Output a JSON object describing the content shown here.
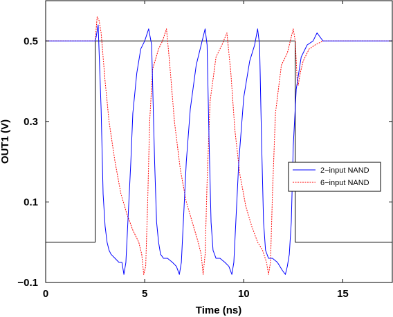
{
  "chart_data": {
    "type": "line",
    "title": "",
    "xlabel": "Time (ns)",
    "ylabel": "OUT1 (V)",
    "xlim": [
      0,
      17.5
    ],
    "ylim": [
      -0.1,
      0.6
    ],
    "x_ticks": [
      "0",
      "5",
      "10",
      "15"
    ],
    "x_tick_values": [
      0,
      5,
      10,
      15
    ],
    "y_ticks": [
      "−0.1",
      "0.1",
      "0.3",
      "0.5"
    ],
    "y_tick_values": [
      -0.1,
      0.1,
      0.3,
      0.5
    ],
    "grid": false,
    "legend_position": "right",
    "series": [
      {
        "name": "2−input NAND",
        "color": "#0000ff",
        "style": "solid",
        "x": [
          0,
          2.5,
          2.55,
          2.65,
          2.8,
          2.9,
          3.0,
          3.1,
          3.2,
          3.3,
          3.5,
          3.7,
          3.85,
          3.95,
          4.05,
          4.15,
          4.3,
          4.4,
          4.6,
          4.8,
          5.0,
          5.2,
          5.35,
          5.5,
          5.6,
          5.7,
          5.8,
          5.95,
          6.15,
          6.4,
          6.6,
          6.75,
          6.85,
          6.95,
          7.1,
          7.3,
          7.6,
          7.85,
          8.05,
          8.15,
          8.25,
          8.35,
          8.45,
          8.6,
          8.8,
          9.05,
          9.25,
          9.4,
          9.5,
          9.6,
          9.75,
          10.0,
          10.3,
          10.55,
          10.7,
          10.8,
          10.9,
          11.0,
          11.1,
          11.25,
          11.45,
          11.7,
          11.95,
          12.1,
          12.2,
          12.3,
          12.4,
          12.5,
          12.65,
          12.9,
          13.2,
          13.5,
          13.7,
          14.0,
          14.5,
          15.0,
          17.5
        ],
        "y": [
          0.5,
          0.5,
          0.51,
          0.54,
          0.33,
          0.12,
          0.04,
          0.0,
          -0.02,
          -0.03,
          -0.04,
          -0.05,
          -0.05,
          -0.08,
          -0.05,
          0.05,
          0.2,
          0.32,
          0.42,
          0.48,
          0.5,
          0.53,
          0.49,
          0.2,
          0.05,
          0.0,
          -0.03,
          -0.04,
          -0.04,
          -0.05,
          -0.06,
          -0.08,
          -0.05,
          0.05,
          0.2,
          0.33,
          0.44,
          0.49,
          0.53,
          0.49,
          0.25,
          0.05,
          -0.02,
          -0.04,
          -0.04,
          -0.05,
          -0.06,
          -0.08,
          -0.05,
          0.05,
          0.2,
          0.36,
          0.45,
          0.49,
          0.53,
          0.49,
          0.25,
          0.05,
          -0.02,
          -0.04,
          -0.04,
          -0.05,
          -0.07,
          -0.08,
          -0.06,
          -0.03,
          0.05,
          0.24,
          0.38,
          0.46,
          0.49,
          0.5,
          0.52,
          0.5,
          0.5,
          0.5,
          0.5
        ]
      },
      {
        "name": "6−input NAND",
        "color": "#ff0000",
        "style": "dotted",
        "x": [
          0,
          2.5,
          2.6,
          2.7,
          2.8,
          3.0,
          3.2,
          3.5,
          3.8,
          4.1,
          4.4,
          4.7,
          4.85,
          4.95,
          5.05,
          5.15,
          5.25,
          5.4,
          5.7,
          5.9,
          6.1,
          6.25,
          6.5,
          6.8,
          7.1,
          7.4,
          7.7,
          7.85,
          7.95,
          8.05,
          8.15,
          8.3,
          8.6,
          8.9,
          9.15,
          9.35,
          9.55,
          9.8,
          10.1,
          10.4,
          10.7,
          10.95,
          11.15,
          11.25,
          11.35,
          11.45,
          11.6,
          11.9,
          12.2,
          12.5,
          12.6,
          12.7,
          12.75,
          12.85,
          13.0,
          13.3,
          13.6,
          14.0,
          14.5,
          17.5
        ],
        "y": [
          0.5,
          0.5,
          0.56,
          0.55,
          0.52,
          0.4,
          0.3,
          0.2,
          0.12,
          0.07,
          0.03,
          0.0,
          -0.03,
          -0.08,
          -0.06,
          0.1,
          0.3,
          0.43,
          0.48,
          0.5,
          0.53,
          0.45,
          0.3,
          0.18,
          0.1,
          0.05,
          0.0,
          -0.03,
          -0.08,
          -0.03,
          0.15,
          0.35,
          0.46,
          0.49,
          0.52,
          0.42,
          0.28,
          0.17,
          0.09,
          0.04,
          0.0,
          -0.02,
          -0.05,
          -0.08,
          -0.05,
          0.12,
          0.32,
          0.44,
          0.47,
          0.53,
          0.5,
          0.4,
          0.39,
          0.42,
          0.45,
          0.48,
          0.49,
          0.5,
          0.5,
          0.5
        ]
      },
      {
        "name": "",
        "color": "#000000",
        "style": "solid",
        "x": [
          0,
          2.5,
          2.5,
          12.6,
          12.6,
          17.5
        ],
        "y": [
          0.0,
          0.0,
          0.5,
          0.5,
          0.0,
          0.0
        ]
      }
    ]
  }
}
